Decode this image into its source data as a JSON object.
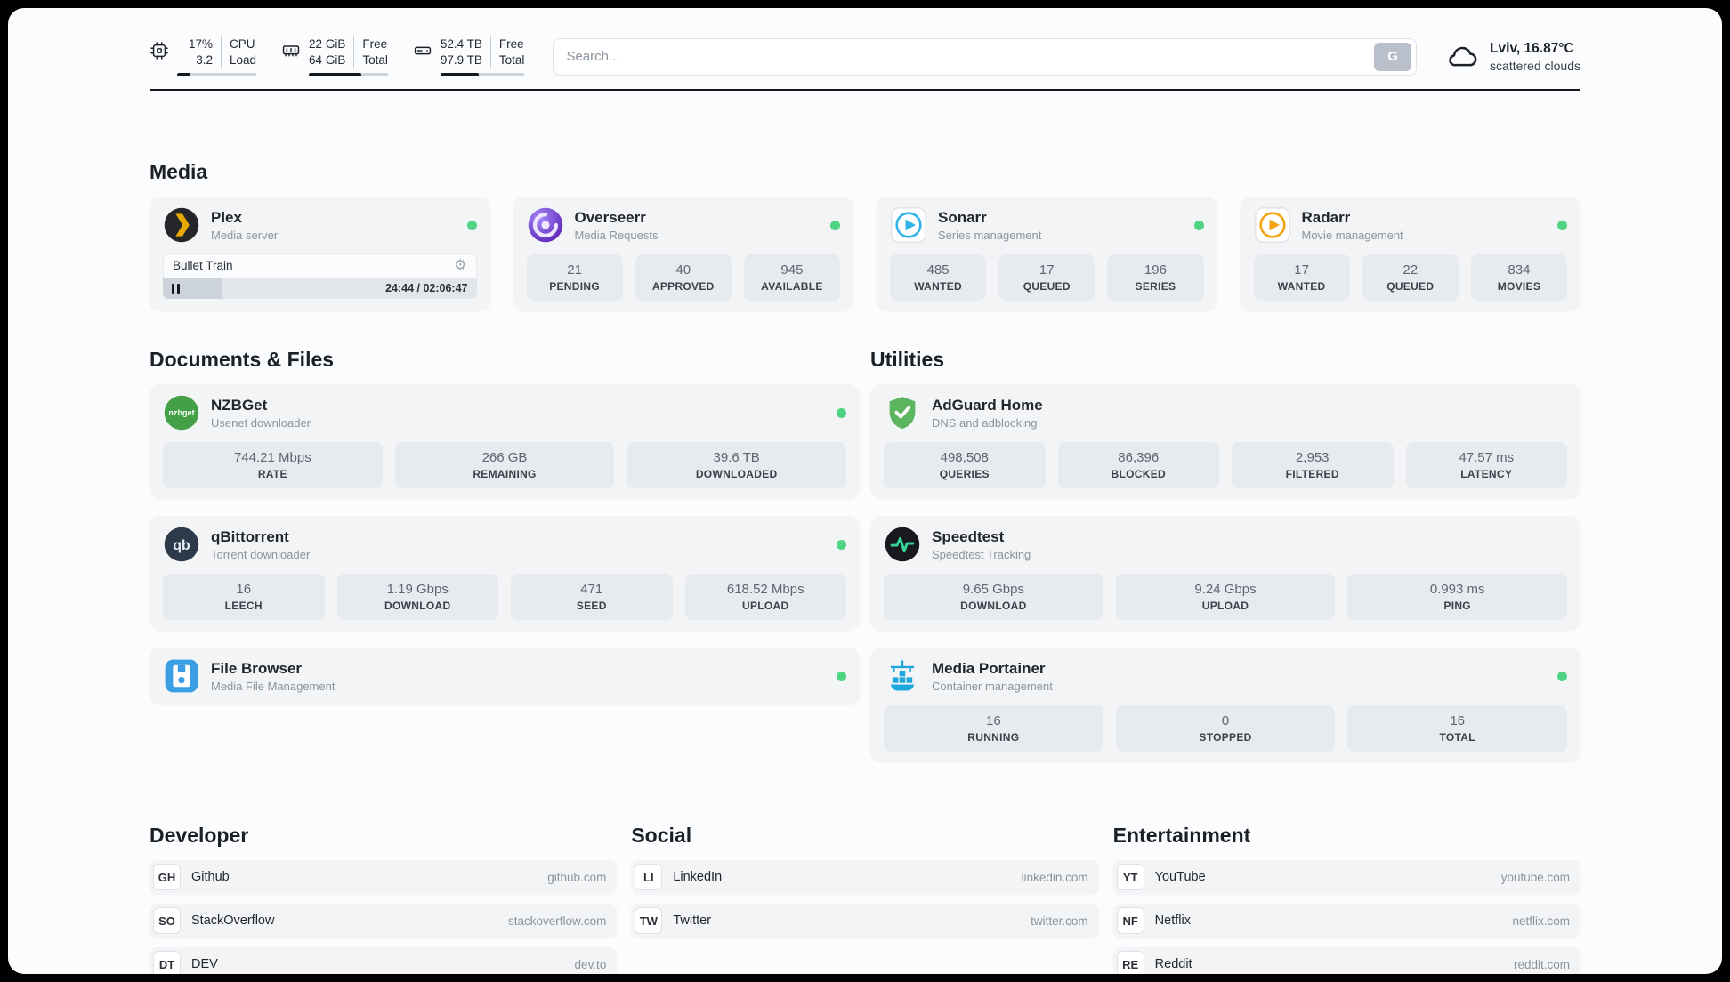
{
  "header": {
    "metrics": [
      {
        "name": "cpu",
        "rows": [
          [
            "17%",
            "CPU"
          ],
          [
            "3.2",
            "Load"
          ]
        ],
        "progress": 17
      },
      {
        "name": "ram",
        "rows": [
          [
            "22 GiB",
            "Free"
          ],
          [
            "64 GiB",
            "Total"
          ]
        ],
        "progress": 66
      },
      {
        "name": "disk",
        "rows": [
          [
            "52.4 TB",
            "Free"
          ],
          [
            "97.9 TB",
            "Total"
          ]
        ],
        "progress": 46
      }
    ],
    "search": {
      "placeholder": "Search...",
      "engine_label": "G"
    },
    "weather": {
      "location": "Lviv, 16.87°C",
      "condition": "scattered clouds"
    }
  },
  "sections": {
    "media": {
      "title": "Media"
    },
    "documents": {
      "title": "Documents & Files"
    },
    "utilities": {
      "title": "Utilities"
    }
  },
  "colors": {
    "online_dot": "#4fd483",
    "accent_dark": "#16191d"
  },
  "apps": {
    "plex": {
      "name": "Plex",
      "desc": "Media server",
      "online": true,
      "player": {
        "track": "Bullet Train",
        "time": "24:44 / 02:06:47",
        "progress": 19
      }
    },
    "overseerr": {
      "name": "Overseerr",
      "desc": "Media Requests",
      "online": true,
      "stats": [
        {
          "value": "21",
          "label": "PENDING"
        },
        {
          "value": "40",
          "label": "APPROVED"
        },
        {
          "value": "945",
          "label": "AVAILABLE"
        }
      ]
    },
    "sonarr": {
      "name": "Sonarr",
      "desc": "Series management",
      "online": true,
      "stats": [
        {
          "value": "485",
          "label": "WANTED"
        },
        {
          "value": "17",
          "label": "QUEUED"
        },
        {
          "value": "196",
          "label": "SERIES"
        }
      ]
    },
    "radarr": {
      "name": "Radarr",
      "desc": "Movie management",
      "online": true,
      "stats": [
        {
          "value": "17",
          "label": "WANTED"
        },
        {
          "value": "22",
          "label": "QUEUED"
        },
        {
          "value": "834",
          "label": "MOVIES"
        }
      ]
    },
    "nzbget": {
      "name": "NZBGet",
      "desc": "Usenet downloader",
      "online": true,
      "stats": [
        {
          "value": "744.21 Mbps",
          "label": "RATE"
        },
        {
          "value": "266 GB",
          "label": "REMAINING"
        },
        {
          "value": "39.6 TB",
          "label": "DOWNLOADED"
        }
      ]
    },
    "qbittorrent": {
      "name": "qBittorrent",
      "desc": "Torrent downloader",
      "online": true,
      "stats": [
        {
          "value": "16",
          "label": "LEECH"
        },
        {
          "value": "1.19 Gbps",
          "label": "DOWNLOAD"
        },
        {
          "value": "471",
          "label": "SEED"
        },
        {
          "value": "618.52 Mbps",
          "label": "UPLOAD"
        }
      ]
    },
    "filebrowser": {
      "name": "File Browser",
      "desc": "Media File Management",
      "online": true
    },
    "adguard": {
      "name": "AdGuard Home",
      "desc": "DNS and adblocking",
      "online": false,
      "stats": [
        {
          "value": "498,508",
          "label": "QUERIES"
        },
        {
          "value": "86,396",
          "label": "BLOCKED"
        },
        {
          "value": "2,953",
          "label": "FILTERED"
        },
        {
          "value": "47.57 ms",
          "label": "LATENCY"
        }
      ]
    },
    "speedtest": {
      "name": "Speedtest",
      "desc": "Speedtest Tracking",
      "online": false,
      "stats": [
        {
          "value": "9.65 Gbps",
          "label": "DOWNLOAD"
        },
        {
          "value": "9.24 Gbps",
          "label": "UPLOAD"
        },
        {
          "value": "0.993 ms",
          "label": "PING"
        }
      ]
    },
    "portainer": {
      "name": "Media Portainer",
      "desc": "Container management",
      "online": true,
      "stats": [
        {
          "value": "16",
          "label": "RUNNING"
        },
        {
          "value": "0",
          "label": "STOPPED"
        },
        {
          "value": "16",
          "label": "TOTAL"
        }
      ]
    }
  },
  "bookmarks": [
    {
      "title": "Developer",
      "items": [
        {
          "abbr": "GH",
          "name": "Github",
          "url": "github.com"
        },
        {
          "abbr": "SO",
          "name": "StackOverflow",
          "url": "stackoverflow.com"
        },
        {
          "abbr": "DT",
          "name": "DEV",
          "url": "dev.to"
        }
      ]
    },
    {
      "title": "Social",
      "items": [
        {
          "abbr": "LI",
          "name": "LinkedIn",
          "url": "linkedin.com"
        },
        {
          "abbr": "TW",
          "name": "Twitter",
          "url": "twitter.com"
        }
      ]
    },
    {
      "title": "Entertainment",
      "items": [
        {
          "abbr": "YT",
          "name": "YouTube",
          "url": "youtube.com"
        },
        {
          "abbr": "NF",
          "name": "Netflix",
          "url": "netflix.com"
        },
        {
          "abbr": "RE",
          "name": "Reddit",
          "url": "reddit.com"
        }
      ]
    }
  ]
}
